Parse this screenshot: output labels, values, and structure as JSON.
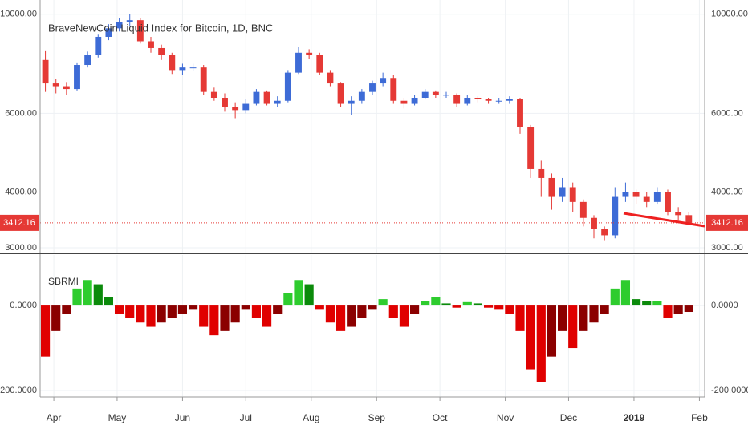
{
  "chart_data": [
    {
      "type": "candlestick",
      "title": "BraveNewCoin Liquid Index for Bitcoin, 1D, BNC",
      "categories": [
        null,
        null,
        null,
        null,
        null,
        null,
        null,
        null,
        null,
        null,
        null,
        null,
        null,
        null,
        null,
        null,
        null,
        null,
        null,
        null,
        null,
        null,
        null,
        null,
        null,
        null,
        null,
        null,
        null,
        null,
        null,
        null,
        null,
        null,
        null,
        null,
        null,
        null,
        null,
        null,
        null,
        null,
        null,
        null,
        null,
        null,
        null,
        null,
        null,
        null,
        null,
        null,
        null,
        null,
        null,
        null,
        null,
        null,
        null,
        null,
        null,
        null
      ],
      "open": [
        7900,
        7000,
        6900,
        6800,
        7700,
        8100,
        8900,
        9300,
        9600,
        9700,
        8700,
        8400,
        8100,
        7500,
        7600,
        7600,
        6700,
        6500,
        6200,
        6100,
        6300,
        6700,
        6300,
        6400,
        7400,
        8200,
        8100,
        7400,
        7000,
        6300,
        6400,
        6700,
        7000,
        7200,
        6400,
        6300,
        6500,
        6700,
        6600,
        6600,
        6300,
        6500,
        6450,
        6400,
        6400,
        6450,
        5600,
        4500,
        4300,
        3900,
        4100,
        3800,
        3500,
        3300,
        3200,
        3900,
        4000,
        3900,
        3800,
        4000,
        3600,
        3550
      ],
      "high": [
        8300,
        7150,
        7050,
        7800,
        8250,
        9000,
        9500,
        9800,
        10000,
        9800,
        8900,
        8550,
        8200,
        7750,
        7750,
        7700,
        6850,
        6650,
        6350,
        6450,
        6800,
        6750,
        6550,
        7500,
        8450,
        8350,
        8200,
        7500,
        7050,
        6550,
        6800,
        7100,
        7400,
        7300,
        6500,
        6600,
        6800,
        6750,
        6700,
        6650,
        6600,
        6550,
        6500,
        6500,
        6550,
        6500,
        5650,
        4700,
        4400,
        4300,
        4200,
        3850,
        3550,
        3350,
        4100,
        4200,
        4050,
        4000,
        4100,
        4050,
        3700,
        3600
      ],
      "low": [
        6700,
        6650,
        6600,
        6750,
        7600,
        8000,
        8750,
        9150,
        9400,
        8600,
        8200,
        7900,
        7350,
        7300,
        7450,
        6600,
        6400,
        6050,
        5850,
        6000,
        6250,
        6250,
        6200,
        6350,
        7350,
        7950,
        7300,
        6900,
        6200,
        5950,
        6300,
        6600,
        6900,
        6300,
        6150,
        6250,
        6450,
        6500,
        6500,
        6200,
        6250,
        6350,
        6300,
        6300,
        6300,
        5400,
        4300,
        3900,
        3650,
        3800,
        3600,
        3350,
        3150,
        3120,
        3150,
        3800,
        3750,
        3700,
        3750,
        3550,
        3450,
        3380
      ],
      "close": [
        7000,
        6900,
        6800,
        7700,
        8100,
        8900,
        9300,
        9600,
        9700,
        8700,
        8400,
        8100,
        7500,
        7600,
        7600,
        6700,
        6500,
        6200,
        6100,
        6300,
        6700,
        6300,
        6400,
        7400,
        8200,
        8100,
        7400,
        7000,
        6300,
        6400,
        6700,
        7000,
        7200,
        6400,
        6300,
        6500,
        6700,
        6600,
        6600,
        6300,
        6500,
        6450,
        6400,
        6400,
        6450,
        5600,
        4500,
        4300,
        3900,
        4100,
        3800,
        3500,
        3300,
        3200,
        3900,
        4000,
        3900,
        3800,
        4000,
        3600,
        3550,
        3412.16
      ],
      "up_color": "#3d6bd6",
      "down_color": "#e53935",
      "last_price": 3412.16,
      "log_scale": true,
      "ylim": [
        2927,
        10763
      ],
      "yticks": [
        {
          "value": 3000,
          "label": "3000.00"
        },
        {
          "value": 4000,
          "label": "4000.00"
        },
        {
          "value": 6000,
          "label": "6000.00"
        },
        {
          "value": 10000,
          "label": "10000.00"
        }
      ],
      "xlim": [
        -0.5,
        62.5
      ],
      "xticks": [
        {
          "value": 0.8,
          "label": "Apr"
        },
        {
          "value": 6.8,
          "label": "May"
        },
        {
          "value": 13,
          "label": "Jun"
        },
        {
          "value": 19,
          "label": "Jul"
        },
        {
          "value": 25.2,
          "label": "Aug"
        },
        {
          "value": 31.4,
          "label": "Sep"
        },
        {
          "value": 37.4,
          "label": "Oct"
        },
        {
          "value": 43.6,
          "label": "Nov"
        },
        {
          "value": 49.6,
          "label": "Dec"
        },
        {
          "value": 55.8,
          "label": "2019"
        },
        {
          "value": 62,
          "label": "Feb"
        }
      ],
      "grid": true
    },
    {
      "type": "histogram-bar",
      "title": "SBRMI",
      "values": [
        -120,
        -60,
        -20,
        40,
        60,
        50,
        20,
        -20,
        -30,
        -40,
        -50,
        -40,
        -30,
        -20,
        -10,
        -50,
        -70,
        -60,
        -40,
        -10,
        -30,
        -50,
        -20,
        30,
        60,
        50,
        -10,
        -40,
        -60,
        -50,
        -30,
        -10,
        15,
        -30,
        -50,
        -20,
        10,
        20,
        5,
        -5,
        8,
        5,
        -5,
        -10,
        -20,
        -60,
        -150,
        -180,
        -120,
        -60,
        -100,
        -60,
        -40,
        -20,
        40,
        60,
        15,
        10,
        10,
        -30,
        -20,
        -15
      ],
      "colors": {
        "positive_rising": "#2ecc2e",
        "positive_falling": "#0b8a0b",
        "negative_falling": "#e00000",
        "negative_rising": "#8b0000"
      },
      "ylim": [
        -215,
        119
      ],
      "yticks": [
        {
          "value": -200,
          "label": "-200.0000"
        },
        {
          "value": 0,
          "label": "0.0000"
        }
      ],
      "grid": true
    }
  ]
}
